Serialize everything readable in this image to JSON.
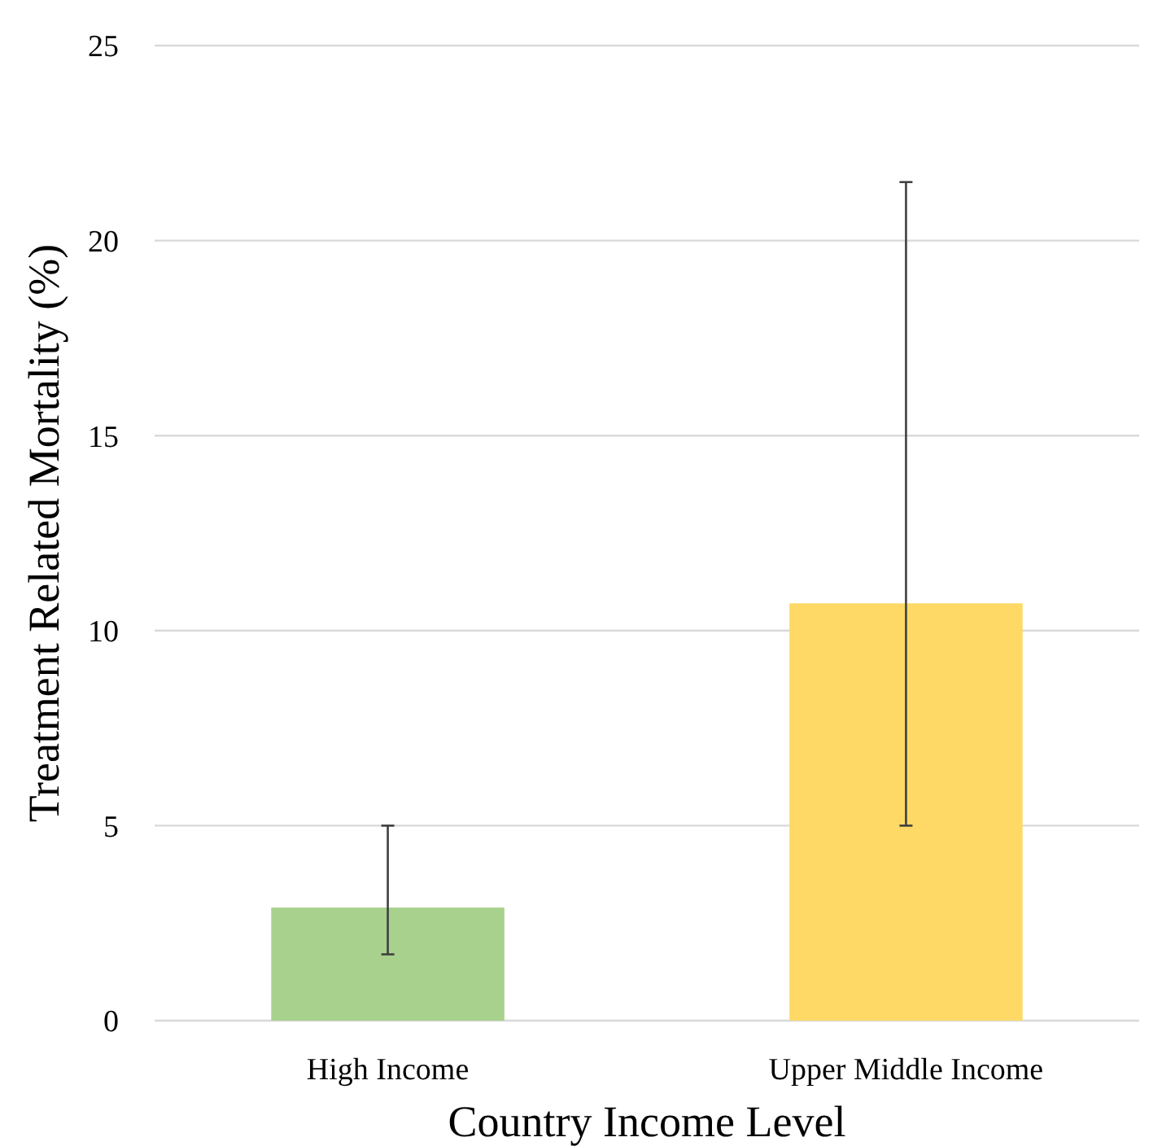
{
  "chart_data": {
    "type": "bar",
    "xlabel": "Country Income Level",
    "ylabel": "Treatment Related Mortality (%)",
    "categories": [
      "High Income",
      "Upper Middle Income"
    ],
    "values": [
      2.9,
      10.7
    ],
    "colors": [
      "#a9d18e",
      "#ffd966"
    ],
    "errors": [
      [
        1.7,
        5
      ],
      [
        5,
        21.5
      ]
    ],
    "ylim": [
      0,
      25
    ],
    "yticks": [
      0,
      5,
      10,
      15,
      20,
      25
    ],
    "grid": "y"
  }
}
